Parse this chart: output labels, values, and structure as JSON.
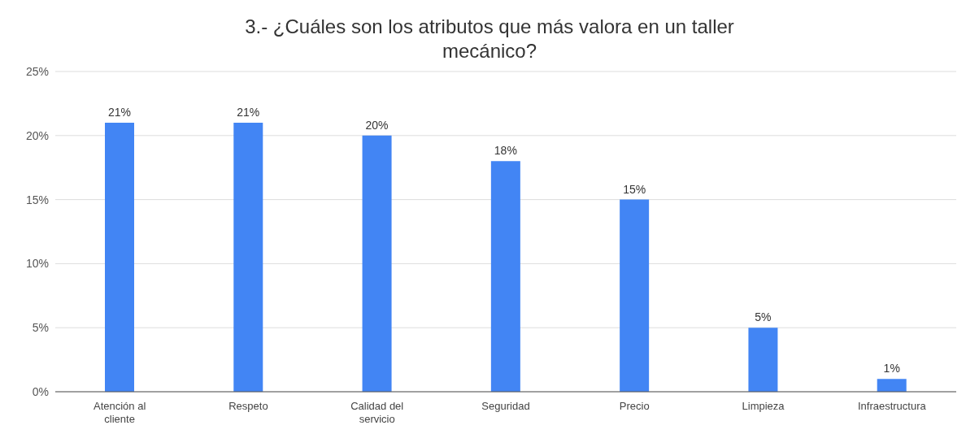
{
  "chart_data": {
    "type": "bar",
    "title": "3.- ¿Cuáles son los atributos que más valora en un taller mecánico?",
    "categories": [
      "Atención al cliente",
      "Respeto",
      "Calidad del servicio",
      "Seguridad",
      "Precio",
      "Limpieza",
      "Infraestructura"
    ],
    "values": [
      21,
      21,
      20,
      18,
      15,
      5,
      1
    ],
    "value_labels": [
      "21%",
      "21%",
      "20%",
      "18%",
      "15%",
      "5%",
      "1%"
    ],
    "color": "#4285f4",
    "ylim": [
      0,
      25
    ],
    "yticks": [
      {
        "value": 0,
        "label": "0%"
      },
      {
        "value": 5,
        "label": "5%"
      },
      {
        "value": 10,
        "label": "10%"
      },
      {
        "value": 15,
        "label": "15%"
      },
      {
        "value": 20,
        "label": "20%"
      },
      {
        "value": 25,
        "label": "25%"
      }
    ],
    "grid": "y",
    "legend": false
  }
}
